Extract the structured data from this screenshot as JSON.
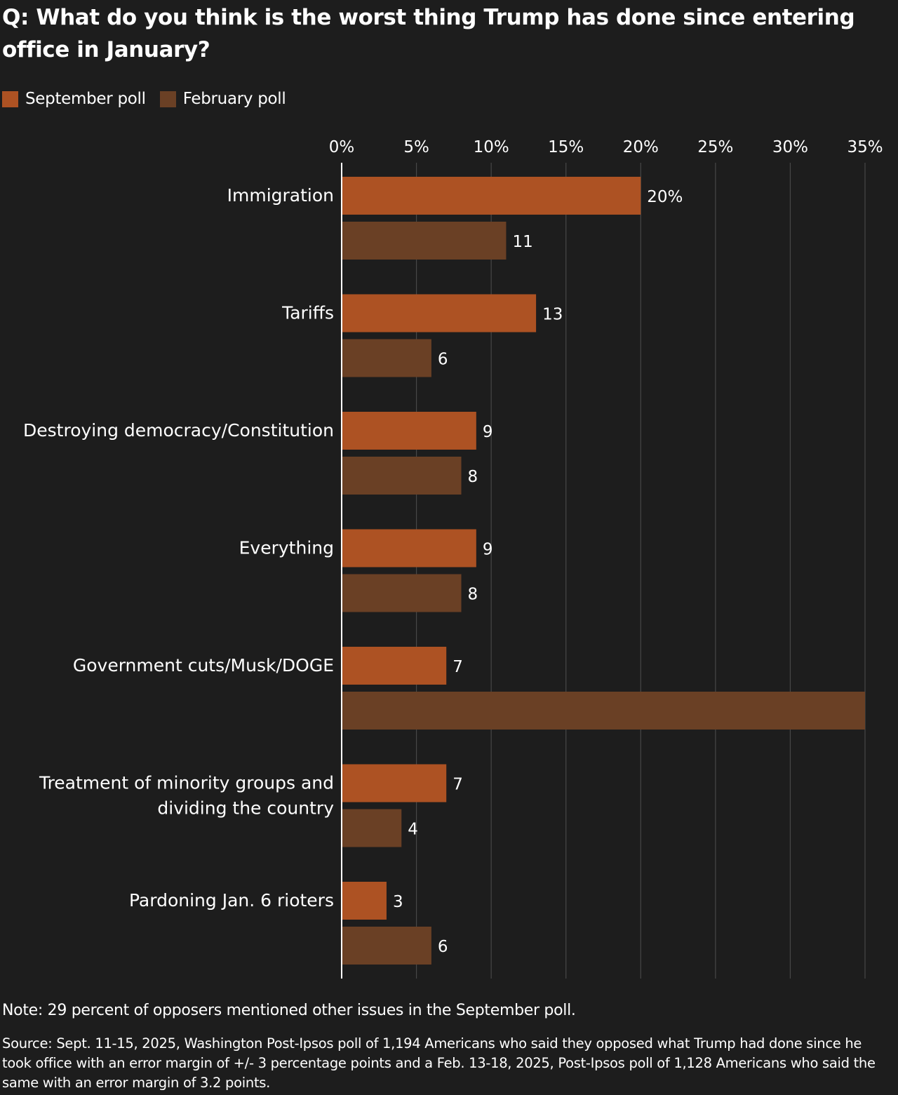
{
  "header": {
    "title": "Q: What do you think is the worst thing Trump has done since entering office in January?"
  },
  "legend": {
    "items": [
      {
        "label": "September poll",
        "color": "#ad5223"
      },
      {
        "label": "February poll",
        "color": "#6a4025"
      }
    ]
  },
  "chart_data": {
    "type": "bar",
    "orientation": "horizontal",
    "categories": [
      "Immigration",
      "Tariffs",
      "Destroying democracy/Constitution",
      "Everything",
      "Government cuts/Musk/DOGE",
      "Treatment of minority groups and dividing the country",
      "Pardoning Jan. 6 rioters"
    ],
    "category_label_lines": [
      [
        "Immigration"
      ],
      [
        "Tariffs"
      ],
      [
        "Destroying democracy/Constitution"
      ],
      [
        "Everything"
      ],
      [
        "Government cuts/Musk/DOGE"
      ],
      [
        "Treatment of minority groups and",
        "dividing the country"
      ],
      [
        "Pardoning Jan. 6 rioters"
      ]
    ],
    "series": [
      {
        "name": "September poll",
        "color": "#ad5223",
        "values": [
          20,
          13,
          9,
          9,
          7,
          7,
          3
        ],
        "data_labels": [
          "20%",
          "13",
          "9",
          "9",
          "7",
          "7",
          "3"
        ]
      },
      {
        "name": "February poll",
        "color": "#6a4025",
        "values": [
          11,
          6,
          8,
          8,
          35,
          4,
          6
        ],
        "data_labels": [
          "11",
          "6",
          "8",
          "8",
          "",
          "4",
          "6"
        ]
      }
    ],
    "x_ticks": [
      0,
      5,
      10,
      15,
      20,
      25,
      30,
      35
    ],
    "x_tick_labels": [
      "0%",
      "5%",
      "10%",
      "15%",
      "20%",
      "25%",
      "30%",
      "35%"
    ],
    "xlim": [
      0,
      35
    ],
    "xlabel": "",
    "ylabel": "",
    "grid": true,
    "legend_position": "top-left"
  },
  "footer": {
    "note": "Note: 29 percent of opposers mentioned other issues in the September poll.",
    "source": "Source: Sept. 11-15, 2025, Washington Post-Ipsos poll of 1,194 Americans who said they opposed what Trump had done since he took office with an error margin of +/- 3 percentage points and a Feb. 13-18, 2025, Post-Ipsos poll of 1,128 Americans who said the same with an error margin of 3.2 points."
  }
}
